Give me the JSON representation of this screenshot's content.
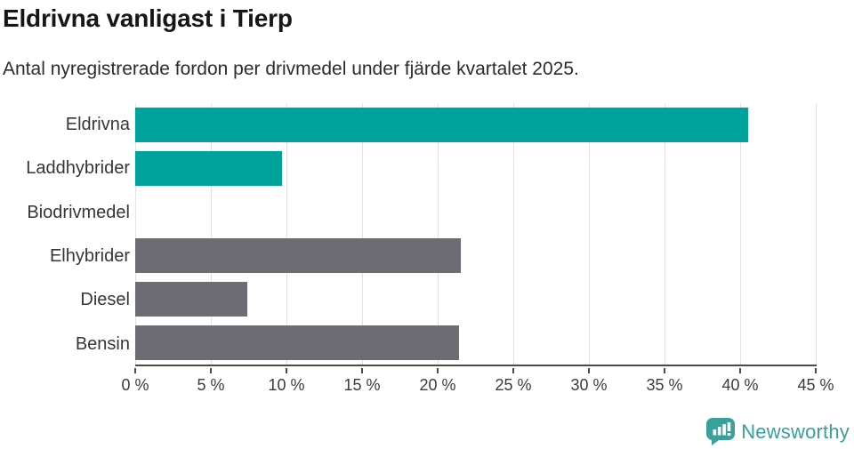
{
  "header": {
    "title": "Eldrivna vanligast i Tierp",
    "subtitle": "Antal nyregistrerade fordon per drivmedel under fjärde kvartalet 2025."
  },
  "chart_data": {
    "type": "bar",
    "orientation": "horizontal",
    "title": "Eldrivna vanligast i Tierp",
    "subtitle": "Antal nyregistrerade fordon per drivmedel under fjärde kvartalet 2025.",
    "categories": [
      "Eldrivna",
      "Laddhybrider",
      "Biodrivmedel",
      "Elhybrider",
      "Diesel",
      "Bensin"
    ],
    "values": [
      40.5,
      9.7,
      0,
      21.5,
      7.4,
      21.4
    ],
    "bar_colors": [
      "#00a39b",
      "#00a39b",
      "#00a39b",
      "#6d6c72",
      "#6d6c72",
      "#6d6c72"
    ],
    "xlabel": "",
    "ylabel": "",
    "xlim": [
      0,
      45
    ],
    "x_ticks": [
      0,
      5,
      10,
      15,
      20,
      25,
      30,
      35,
      40,
      45
    ],
    "x_tick_labels": [
      "0 %",
      "5 %",
      "10 %",
      "15 %",
      "20 %",
      "25 %",
      "30 %",
      "35 %",
      "40 %",
      "45 %"
    ],
    "grid": true,
    "legend": false
  },
  "colors": {
    "teal": "#00a39b",
    "gray": "#6d6c72",
    "axis": "#4a4a4a",
    "gridline": "#e1e1e1",
    "logo": "#38a09c"
  },
  "footer": {
    "brand": "Newsworthy"
  }
}
